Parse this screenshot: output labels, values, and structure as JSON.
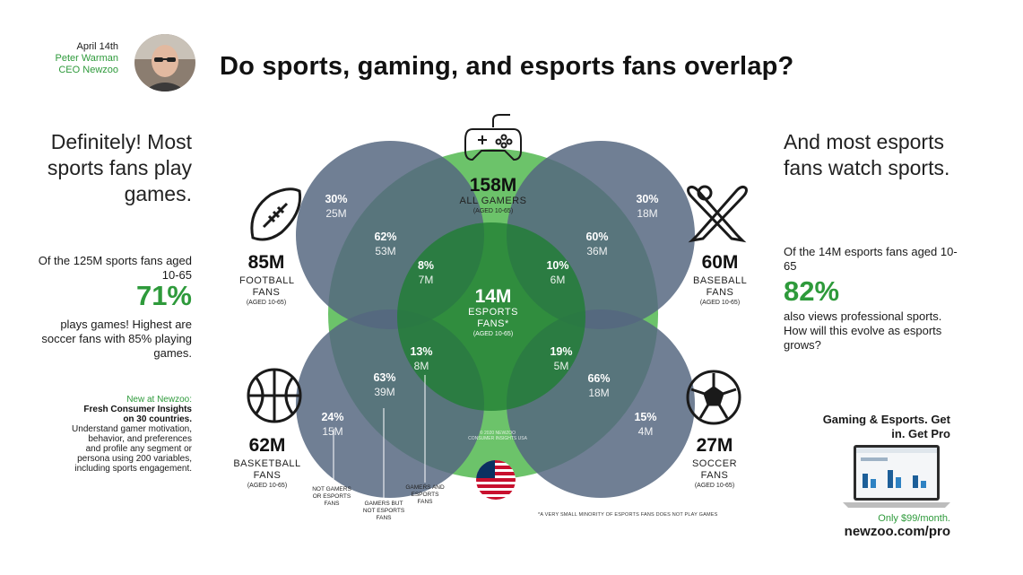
{
  "header": {
    "date": "April 14th",
    "author_name": "Peter Warman",
    "author_title": "CEO Newzoo",
    "title": "Do sports, gaming, and esports fans overlap?"
  },
  "left": {
    "headline": "Definitely! Most sports fans play games.",
    "stat_intro": "Of the 125M sports fans aged 10-65",
    "stat_pct": "71%",
    "stat_desc": "plays games! Highest are soccer fans with 85% playing games.",
    "promo_new": "New at Newzoo:",
    "promo_bold": "Fresh Consumer Insights on 30 countries.",
    "promo_body": "Understand gamer motivation, behavior, and preferences and profile any segment or persona using 200 variables, including sports engagement."
  },
  "right": {
    "headline": "And most esports fans watch sports.",
    "stat_intro": "Of the 14M esports fans aged 10-65",
    "stat_pct": "82%",
    "stat_desc": "also views professional sports. How will this evolve as esports grows?",
    "promo_title": "Gaming & Esports. Get in. Get Pro",
    "promo_price": "Only $99/month.",
    "promo_url": "newzoo.com/pro"
  },
  "groups": {
    "gamers": {
      "count": "158M",
      "name": "ALL GAMERS",
      "age": "(AGED 10-65)"
    },
    "esports": {
      "count": "14M",
      "name1": "ESPORTS",
      "name2": "FANS*",
      "age": "(AGED 10-65)"
    },
    "football": {
      "count": "85M",
      "name": "FOOTBALL FANS",
      "age": "(AGED 10-65)"
    },
    "baseball": {
      "count": "60M",
      "name": "BASEBALL FANS",
      "age": "(AGED 10-65)"
    },
    "basketball": {
      "count": "62M",
      "name": "BASKETBALL FANS",
      "age": "(AGED 10-65)"
    },
    "soccer": {
      "count": "27M",
      "name": "SOCCER FANS",
      "age": "(AGED 10-65)"
    }
  },
  "stats": {
    "football_non_gamers": {
      "pct": "30%",
      "count": "25M"
    },
    "football_gamers": {
      "pct": "62%",
      "count": "53M"
    },
    "football_esports": {
      "pct": "8%",
      "count": "7M"
    },
    "baseball_non_gamers": {
      "pct": "30%",
      "count": "18M"
    },
    "baseball_gamers": {
      "pct": "60%",
      "count": "36M"
    },
    "baseball_esports": {
      "pct": "10%",
      "count": "6M"
    },
    "basketball_non_gamers": {
      "pct": "24%",
      "count": "15M"
    },
    "basketball_gamers": {
      "pct": "63%",
      "count": "39M"
    },
    "basketball_esports": {
      "pct": "13%",
      "count": "8M"
    },
    "soccer_non_gamers": {
      "pct": "15%",
      "count": "4M"
    },
    "soccer_gamers": {
      "pct": "66%",
      "count": "18M"
    },
    "soccer_esports": {
      "pct": "19%",
      "count": "5M"
    }
  },
  "notes": {
    "not_gamers": "NOT GAMERS OR ESPORTS FANS",
    "gamers_not_esports": "GAMERS BUT NOT ESPORTS FANS",
    "gamers_and_esports": "GAMERS AND ESPORTS FANS",
    "footnote": "*A VERY SMALL MINORITY OF ESPORTS FANS DOES NOT PLAY GAMES",
    "copyright": "© 2020 NEWZOO CONSUMER INSIGHTS USA"
  },
  "colors": {
    "gamers_circle": "#6cc36a",
    "esports_circle": "#2f8a37",
    "sports_circle": "#55677f",
    "accent_green": "#2e9a3b"
  },
  "icons": [
    "gamepad-icon",
    "football-icon",
    "baseball-bats-icon",
    "basketball-icon",
    "soccer-ball-icon",
    "usa-flag-icon",
    "laptop-dashboard-icon"
  ]
}
